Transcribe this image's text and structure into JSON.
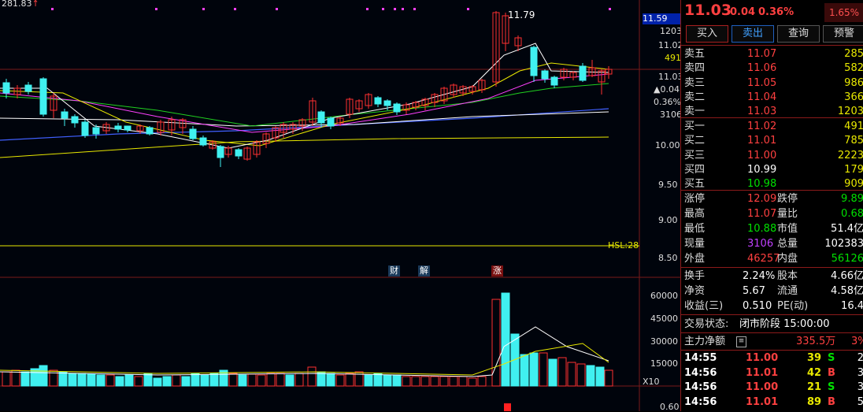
{
  "topleft": {
    "value": "281.83",
    "arrow": "↑"
  },
  "price_axis": {
    "current_box": "11.59",
    "labels": [
      "1203",
      "11.02",
      "491",
      "11.03",
      "▲0.04",
      "0.36%",
      "3106",
      "10.00",
      "9.50",
      "9.00",
      "8.50"
    ],
    "vol_labels": [
      "60000",
      "45000",
      "30000",
      "15000"
    ],
    "bottom_label": "0.60",
    "x10": "X10"
  },
  "chart": {
    "high_label": "11.79",
    "hsl_label": "HSL:28",
    "tags": [
      {
        "text": "财",
        "bg": "#1a3a5a",
        "color": "#ffffff"
      },
      {
        "text": "解",
        "bg": "#1a3a5a",
        "color": "#ffffff"
      },
      {
        "text": "涨",
        "bg": "#7a1010",
        "color": "#ffffff"
      }
    ]
  },
  "header": {
    "price": "11.03",
    "change": "0.04",
    "pct": "0.36%",
    "badge": "1.65%"
  },
  "buttons": {
    "buy": "买入",
    "sell": "卖出",
    "query": "查询",
    "alert": "预警"
  },
  "asks": [
    {
      "label": "卖五",
      "price": "11.07",
      "vol": "285"
    },
    {
      "label": "卖四",
      "price": "11.06",
      "vol": "582"
    },
    {
      "label": "卖三",
      "price": "11.05",
      "vol": "986"
    },
    {
      "label": "卖二",
      "price": "11.04",
      "vol": "366"
    },
    {
      "label": "卖一",
      "price": "11.03",
      "vol": "1203"
    }
  ],
  "bids": [
    {
      "label": "买一",
      "price": "11.02",
      "vol": "491"
    },
    {
      "label": "买二",
      "price": "11.01",
      "vol": "785"
    },
    {
      "label": "买三",
      "price": "11.00",
      "vol": "2223"
    },
    {
      "label": "买四",
      "price": "10.99",
      "vol": "179"
    },
    {
      "label": "买五",
      "price": "10.98",
      "vol": "909"
    }
  ],
  "stats": [
    {
      "l1": "涨停",
      "v1": "12.09",
      "c1": "red",
      "l2": "跌停",
      "v2": "9.89",
      "c2": "green"
    },
    {
      "l1": "最高",
      "v1": "11.07",
      "c1": "red",
      "l2": "量比",
      "v2": "0.68",
      "c2": "green"
    },
    {
      "l1": "最低",
      "v1": "10.88",
      "c1": "green",
      "l2": "市值",
      "v2": "51.4亿",
      "c2": "white"
    },
    {
      "l1": "现量",
      "v1": "3106",
      "c1": "purple",
      "l2": "总量",
      "v2": "102383",
      "c2": "white"
    },
    {
      "l1": "外盘",
      "v1": "46257",
      "c1": "red",
      "l2": "内盘",
      "v2": "56126",
      "c2": "green"
    }
  ],
  "stats2": [
    {
      "l1": "换手",
      "v1": "2.24%",
      "l2": "股本",
      "v2": "4.66亿"
    },
    {
      "l1": "净资",
      "v1": "5.67",
      "l2": "流通",
      "v2": "4.58亿"
    },
    {
      "l1": "收益(三)",
      "v1": "0.510",
      "l2": "PE(动)",
      "v2": "16.4"
    }
  ],
  "trade_status": {
    "label": "交易状态:",
    "value": "闭市阶段 15:00:00"
  },
  "main_force": {
    "label": "主力净额",
    "value": "335.5万",
    "pct": "3%"
  },
  "ticks": [
    {
      "time": "14:55",
      "price": "11.00",
      "vol": "39",
      "side": "S",
      "n": "2"
    },
    {
      "time": "14:56",
      "price": "11.01",
      "vol": "42",
      "side": "B",
      "n": "3"
    },
    {
      "time": "14:56",
      "price": "11.00",
      "vol": "21",
      "side": "S",
      "n": "3"
    },
    {
      "time": "14:56",
      "price": "11.01",
      "vol": "89",
      "side": "B",
      "n": "5"
    }
  ],
  "colors": {
    "up": "#ff3030",
    "down": "#40f0f0",
    "panel_red": "#8b1a1a"
  }
}
